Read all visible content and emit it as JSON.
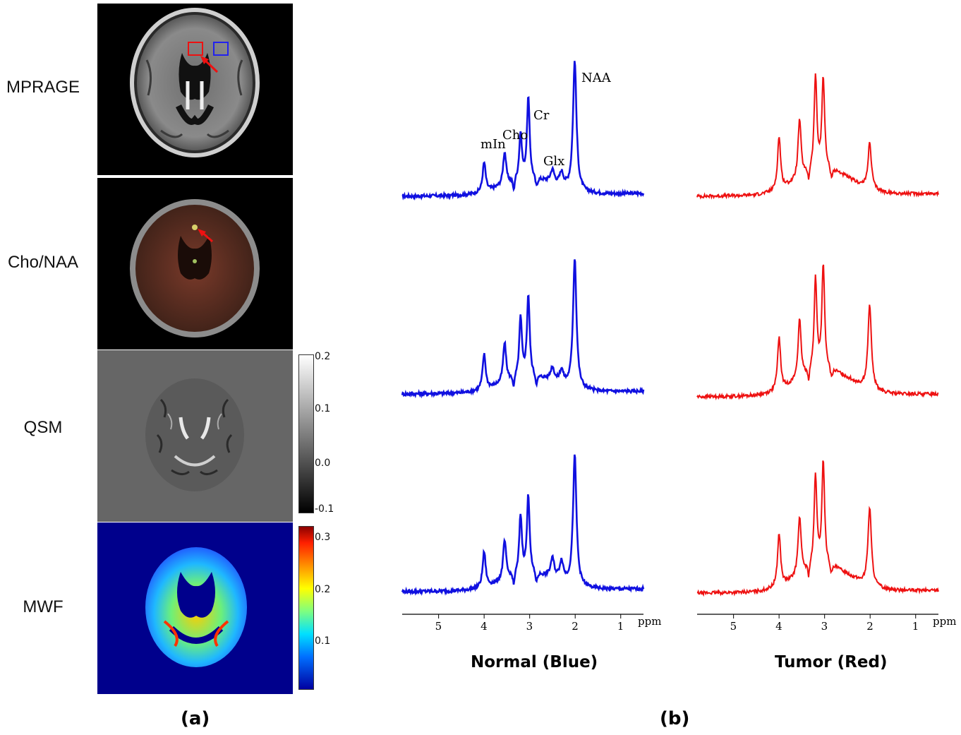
{
  "panel_a": {
    "label": "(a)",
    "rows": [
      {
        "label": "MPRAGE"
      },
      {
        "label": "Cho/NAA"
      },
      {
        "label": "QSM"
      },
      {
        "label": "MWF"
      }
    ],
    "qsm_colorbar": {
      "ticks": [
        "0.2",
        "0.1",
        "0.0",
        "-0.1"
      ],
      "colormap": "gray"
    },
    "mwf_colorbar": {
      "ticks": [
        "0.3",
        "0.2",
        "0.1"
      ],
      "colormap": "jet"
    }
  },
  "panel_b": {
    "label": "(b)",
    "normal_caption": "Normal (Blue)",
    "tumor_caption": "Tumor (Red)",
    "x_unit": "ppm",
    "x_ticks": [
      "5",
      "4",
      "3",
      "2",
      "1"
    ],
    "peak_labels": [
      "NAA",
      "Cr",
      "Cho",
      "mIn",
      "Glx"
    ]
  },
  "chart_data": [
    {
      "type": "line",
      "name": "Normal spectra",
      "color": "#1010e0",
      "x_unit": "ppm",
      "x_axis_reversed": true,
      "xlim": [
        5.8,
        0.5
      ],
      "peaks_ppm": {
        "mIn": 3.55,
        "Cho": 3.2,
        "Cr": 3.03,
        "Glx": 2.3,
        "NAA": 2.01
      },
      "series": [
        {
          "values_relative": {
            "NAA": 1.0,
            "Cr": 0.62,
            "Cho": 0.35,
            "mIn": 0.25,
            "Glx": 0.1
          }
        },
        {
          "values_relative": {
            "NAA": 1.0,
            "Cr": 0.62,
            "Cho": 0.45,
            "mIn": 0.3,
            "Glx": 0.1
          }
        },
        {
          "values_relative": {
            "NAA": 1.0,
            "Cr": 0.6,
            "Cho": 0.45,
            "mIn": 0.3,
            "Glx": 0.15
          }
        }
      ]
    },
    {
      "type": "line",
      "name": "Tumor spectra",
      "color": "#ee1111",
      "x_unit": "ppm",
      "x_axis_reversed": true,
      "xlim": [
        5.8,
        0.5
      ],
      "series": [
        {
          "values_relative": {
            "NAA": 0.35,
            "Cr": 0.7,
            "Cho": 0.72,
            "mIn": 0.45
          }
        },
        {
          "values_relative": {
            "NAA": 0.65,
            "Cr": 0.8,
            "Cho": 0.7,
            "mIn": 0.45
          }
        },
        {
          "values_relative": {
            "NAA": 0.6,
            "Cr": 0.8,
            "Cho": 0.7,
            "mIn": 0.45
          }
        }
      ]
    }
  ]
}
